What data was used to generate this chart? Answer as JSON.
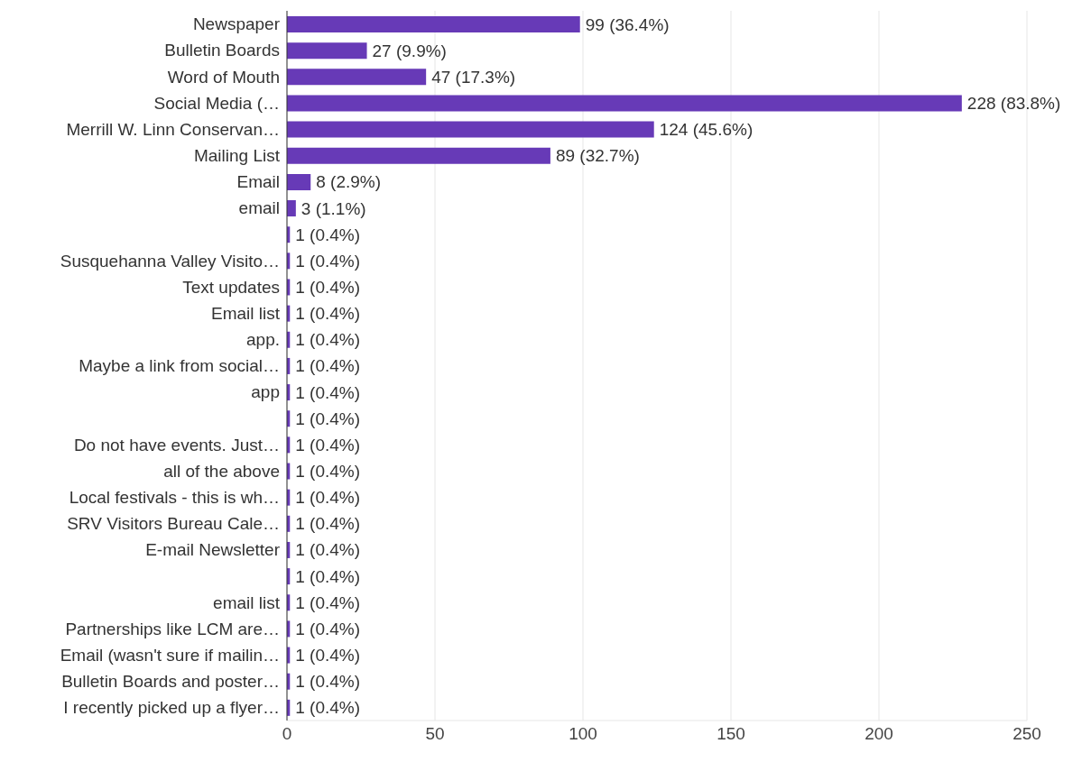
{
  "chart_data": {
    "type": "bar",
    "orientation": "horizontal",
    "categories": [
      "Newspaper",
      "Bulletin Boards",
      "Word of Mouth",
      "Social Media (…",
      "Merrill W. Linn Conservan…",
      "Mailing List",
      "Email",
      "email",
      null,
      "Susquehanna Valley Visito…",
      "Text updates",
      "Email list",
      "app.",
      "Maybe a link from social…",
      "app",
      null,
      "Do not have events. Just…",
      "all of the above",
      "Local festivals - this is wh…",
      "SRV Visitors Bureau Cale…",
      "E-mail Newsletter",
      null,
      "email list",
      "Partnerships like LCM are…",
      "Email (wasn't sure if mailin…",
      "Bulletin Boards and poster…",
      "I recently picked up a flyer…"
    ],
    "values": [
      99,
      27,
      47,
      228,
      124,
      89,
      8,
      3,
      1,
      1,
      1,
      1,
      1,
      1,
      1,
      1,
      1,
      1,
      1,
      1,
      1,
      1,
      1,
      1,
      1,
      1,
      1
    ],
    "value_labels": [
      "99 (36.4%)",
      "27 (9.9%)",
      "47 (17.3%)",
      "228 (83.8%)",
      "124 (45.6%)",
      "89 (32.7%)",
      "8 (2.9%)",
      "3 (1.1%)",
      "1 (0.4%)",
      "1 (0.4%)",
      "1 (0.4%)",
      "1 (0.4%)",
      "1 (0.4%)",
      "1 (0.4%)",
      "1 (0.4%)",
      "1 (0.4%)",
      "1 (0.4%)",
      "1 (0.4%)",
      "1 (0.4%)",
      "1 (0.4%)",
      "1 (0.4%)",
      "1 (0.4%)",
      "1 (0.4%)",
      "1 (0.4%)",
      "1 (0.4%)",
      "1 (0.4%)",
      "1 (0.4%)"
    ],
    "color": "#673ab7",
    "xlim": [
      0,
      250
    ],
    "xticks": [
      0,
      50,
      100,
      150,
      200,
      250
    ],
    "grid": "x"
  }
}
